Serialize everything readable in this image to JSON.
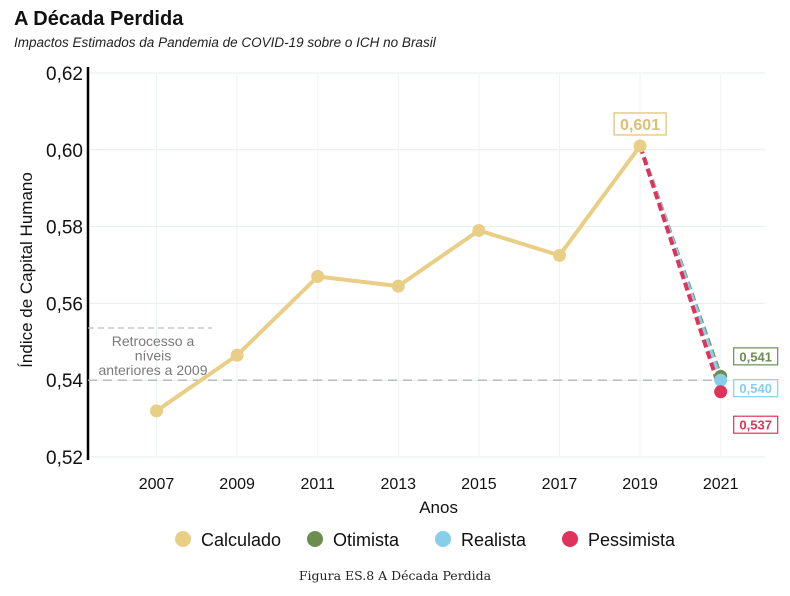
{
  "chart_data": {
    "type": "line",
    "title": "A Década Perdida",
    "subtitle": "Impactos Estimados da Pandemia de COVID-19 sobre o ICH no Brasil",
    "xlabel": "Anos",
    "ylabel": "Índice de Capital Humano",
    "ylim": [
      0.52,
      0.62
    ],
    "y_ticks": [
      "0,52",
      "0,54",
      "0,56",
      "0,58",
      "0,60",
      "0,62"
    ],
    "y_tick_values": [
      0.52,
      0.54,
      0.56,
      0.58,
      0.6,
      0.62
    ],
    "x_ticks": [
      "2007",
      "2009",
      "2011",
      "2013",
      "2015",
      "2017",
      "2019",
      "2021"
    ],
    "x_tick_values": [
      2007,
      2009,
      2011,
      2013,
      2015,
      2017,
      2019,
      2021
    ],
    "xlim": [
      2005.3,
      2022.1
    ],
    "grid": true,
    "legend_position": "bottom",
    "series": [
      {
        "name": "Calculado",
        "color": "#E8CF85",
        "style": "solid",
        "x": [
          2007,
          2009,
          2011,
          2013,
          2015,
          2017,
          2019
        ],
        "y": [
          0.532,
          0.5465,
          0.567,
          0.5645,
          0.579,
          0.5725,
          0.601
        ]
      },
      {
        "name": "Otimista",
        "color": "#6B8E50",
        "style": "dashed",
        "x": [
          2019,
          2021
        ],
        "y": [
          0.601,
          0.541
        ]
      },
      {
        "name": "Realista",
        "color": "#87CEEB",
        "style": "dashed",
        "x": [
          2019,
          2021
        ],
        "y": [
          0.601,
          0.54
        ]
      },
      {
        "name": "Pessimista",
        "color": "#E0335C",
        "style": "dashed",
        "x": [
          2019,
          2021
        ],
        "y": [
          0.601,
          0.537
        ]
      }
    ],
    "data_labels": [
      {
        "text": "0,601",
        "x": 2019,
        "y": 0.601,
        "color": "#E0C070",
        "anchor": "above"
      },
      {
        "text": "0,541",
        "x": 2021,
        "y": 0.541,
        "color": "#6B8E50",
        "anchor": "right-upper"
      },
      {
        "text": "0,540",
        "x": 2021,
        "y": 0.54,
        "color": "#87CEEB",
        "anchor": "right"
      },
      {
        "text": "0,537",
        "x": 2021,
        "y": 0.537,
        "color": "#E0335C",
        "anchor": "right-lower"
      }
    ],
    "reference_line": {
      "y": 0.54,
      "color": "#B5B5B5"
    },
    "annotation": {
      "lines": [
        "Retrocesso a",
        "níveis",
        "anteriores a 2009"
      ]
    }
  },
  "caption": "Figura ES.8 A Década Perdida"
}
